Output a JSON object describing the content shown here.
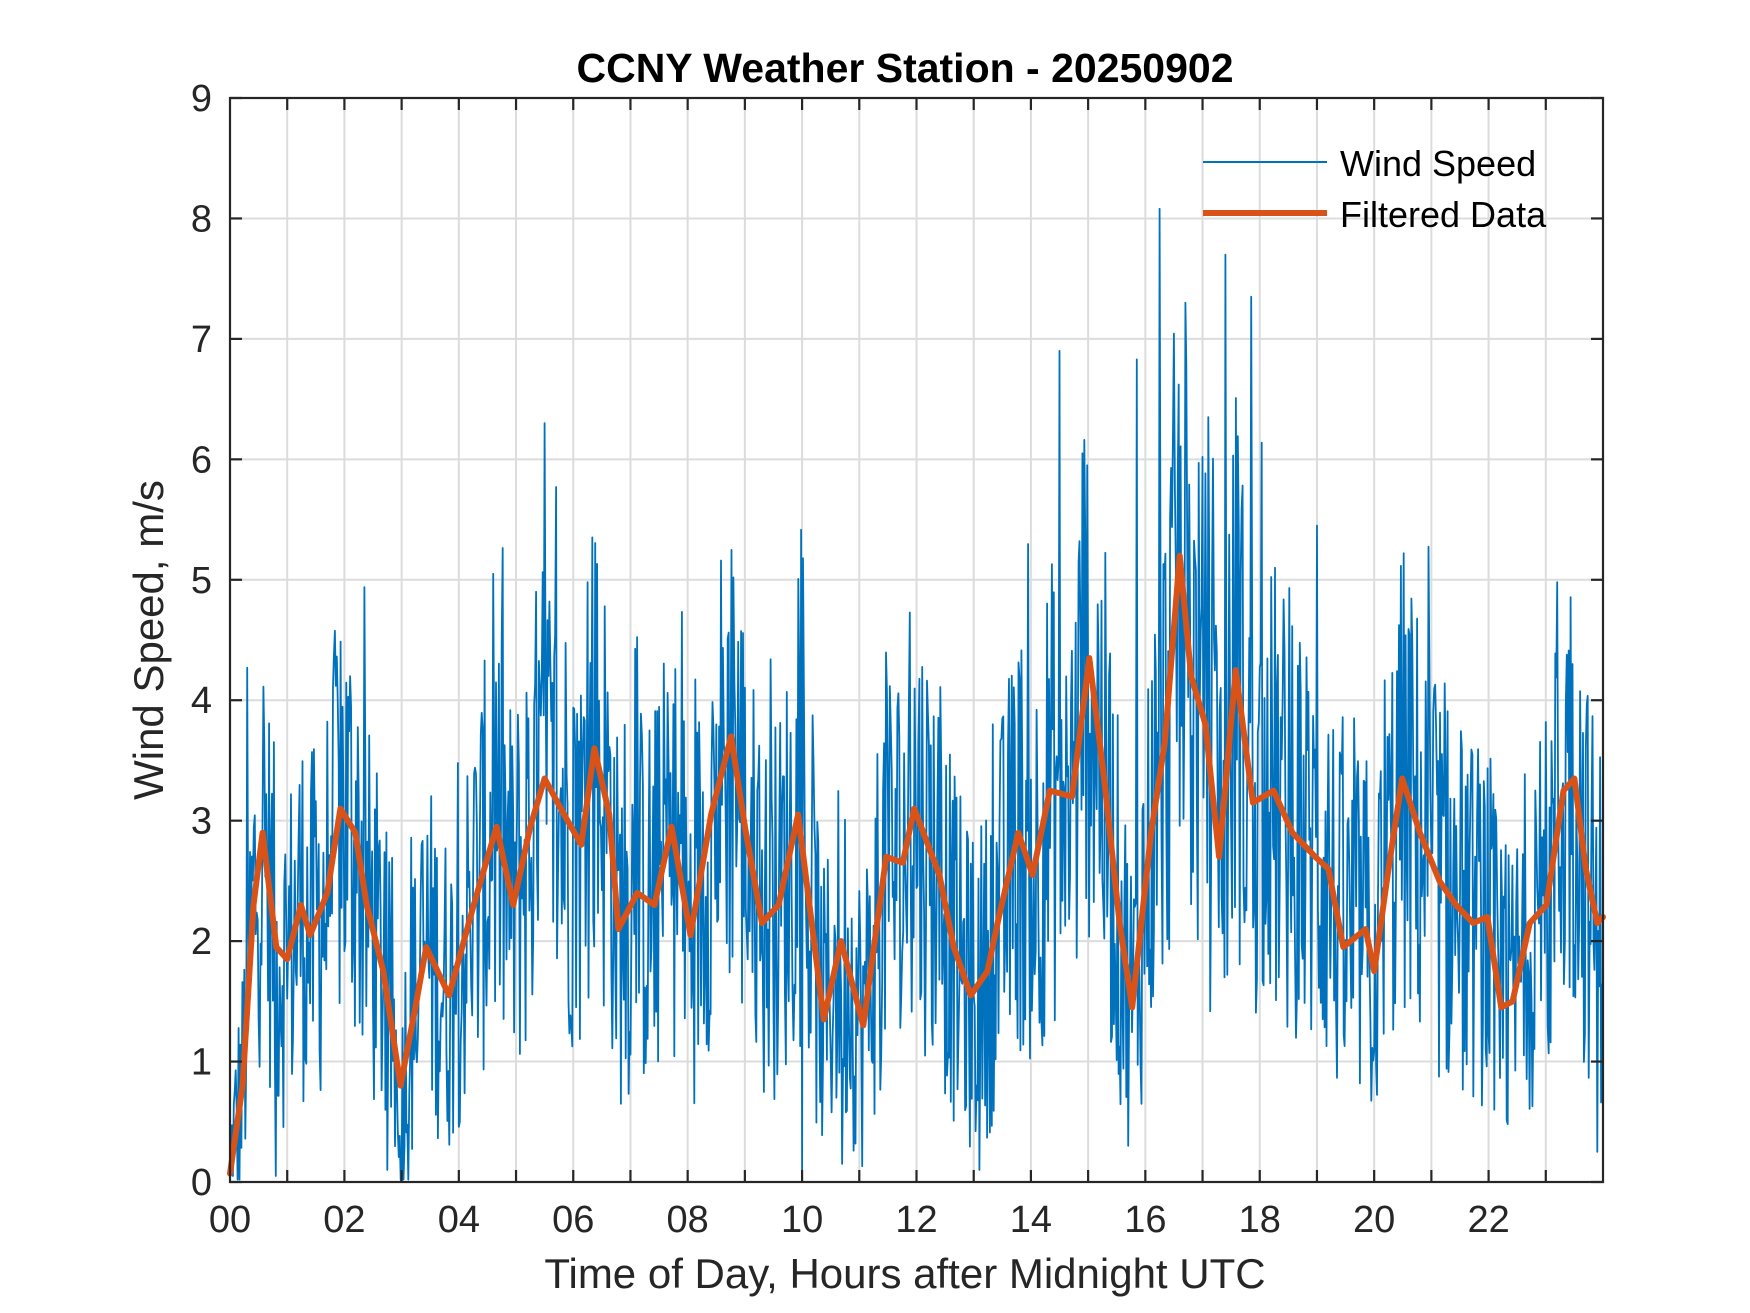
{
  "chart_data": {
    "type": "line",
    "title": "CCNY Weather Station - 20250902",
    "xlabel": "Time of Day, Hours after Midnight UTC",
    "ylabel": "Wind Speed, m/s",
    "xlim": [
      0,
      24
    ],
    "ylim": [
      0,
      9
    ],
    "x_ticks": [
      0,
      2,
      4,
      6,
      8,
      10,
      12,
      14,
      16,
      18,
      20,
      22
    ],
    "x_tick_labels": [
      "00",
      "02",
      "04",
      "06",
      "08",
      "10",
      "12",
      "14",
      "16",
      "18",
      "20",
      "22"
    ],
    "x_minor_grid_step": 1,
    "y_ticks": [
      0,
      1,
      2,
      3,
      4,
      5,
      6,
      7,
      8,
      9
    ],
    "y_tick_labels": [
      "0",
      "1",
      "2",
      "3",
      "4",
      "5",
      "6",
      "7",
      "8",
      "9"
    ],
    "grid": true,
    "legend_position": "top-right",
    "series": [
      {
        "name": "Wind Speed",
        "color": "#0072BD",
        "style": "thin",
        "description": "Raw 1-minute-ish samples, highly variable around the filtered curve",
        "notable_peaks": [
          {
            "x": 0.3,
            "y": 4.27
          },
          {
            "x": 1.85,
            "y": 4.12
          },
          {
            "x": 4.6,
            "y": 5.05
          },
          {
            "x": 5.7,
            "y": 5.77
          },
          {
            "x": 6.25,
            "y": 4.98
          },
          {
            "x": 8.8,
            "y": 5.02
          },
          {
            "x": 14.5,
            "y": 6.9
          },
          {
            "x": 14.9,
            "y": 6.05
          },
          {
            "x": 15.85,
            "y": 6.83
          },
          {
            "x": 16.25,
            "y": 8.08
          },
          {
            "x": 16.7,
            "y": 7.3
          },
          {
            "x": 17.1,
            "y": 6.35
          },
          {
            "x": 17.4,
            "y": 7.7
          },
          {
            "x": 17.85,
            "y": 7.35
          },
          {
            "x": 19.0,
            "y": 5.45
          },
          {
            "x": 23.2,
            "y": 4.98
          }
        ],
        "notable_troughs": [
          {
            "x": 0.05,
            "y": 0.05
          },
          {
            "x": 0.8,
            "y": 0.05
          },
          {
            "x": 2.75,
            "y": 0.1
          },
          {
            "x": 3.0,
            "y": 0.0
          },
          {
            "x": 10.0,
            "y": 0.1
          },
          {
            "x": 10.7,
            "y": 0.15
          },
          {
            "x": 13.1,
            "y": 0.1
          },
          {
            "x": 15.7,
            "y": 0.3
          },
          {
            "x": 22.1,
            "y": 0.6
          },
          {
            "x": 23.9,
            "y": 0.25
          }
        ]
      },
      {
        "name": "Filtered Data",
        "color": "#D95319",
        "style": "thick",
        "x": [
          0.0,
          0.22,
          0.41,
          0.57,
          0.81,
          1.0,
          1.24,
          1.4,
          1.7,
          1.93,
          2.19,
          2.39,
          2.68,
          2.98,
          3.24,
          3.43,
          3.83,
          4.26,
          4.66,
          4.95,
          5.25,
          5.5,
          5.84,
          6.14,
          6.37,
          6.63,
          6.79,
          7.12,
          7.42,
          7.72,
          8.05,
          8.41,
          8.76,
          9.0,
          9.3,
          9.59,
          9.93,
          10.38,
          10.68,
          11.07,
          11.47,
          11.76,
          11.96,
          12.2,
          12.4,
          12.65,
          12.95,
          13.24,
          13.44,
          13.78,
          14.03,
          14.33,
          14.72,
          15.02,
          15.28,
          15.55,
          15.77,
          16.1,
          16.34,
          16.6,
          16.8,
          17.05,
          17.29,
          17.58,
          17.88,
          18.24,
          18.57,
          18.97,
          19.2,
          19.46,
          19.85,
          20.0,
          20.25,
          20.49,
          20.8,
          21.14,
          21.43,
          21.73,
          21.98,
          22.22,
          22.42,
          22.72,
          23.01,
          23.31,
          23.5,
          23.7,
          23.9,
          24.0
        ],
        "y": [
          0.07,
          0.8,
          2.3,
          2.9,
          1.95,
          1.85,
          2.3,
          2.05,
          2.4,
          3.1,
          2.9,
          2.3,
          1.75,
          0.8,
          1.45,
          1.95,
          1.55,
          2.3,
          2.95,
          2.3,
          2.95,
          3.35,
          3.05,
          2.8,
          3.6,
          3.05,
          2.1,
          2.4,
          2.3,
          2.95,
          2.05,
          3.05,
          3.7,
          2.95,
          2.15,
          2.3,
          3.05,
          1.35,
          2.0,
          1.3,
          2.7,
          2.65,
          3.1,
          2.8,
          2.55,
          1.95,
          1.55,
          1.75,
          2.2,
          2.9,
          2.55,
          3.25,
          3.2,
          4.35,
          3.35,
          2.15,
          1.45,
          2.9,
          3.65,
          5.2,
          4.2,
          3.8,
          2.7,
          4.25,
          3.15,
          3.25,
          2.9,
          2.7,
          2.6,
          1.95,
          2.1,
          1.75,
          2.6,
          3.35,
          2.9,
          2.5,
          2.3,
          2.15,
          2.2,
          1.45,
          1.5,
          2.15,
          2.3,
          3.25,
          3.35,
          2.6,
          2.15,
          2.2
        ]
      }
    ]
  },
  "legend": {
    "items": [
      {
        "label": "Wind Speed",
        "color": "#0072BD"
      },
      {
        "label": "Filtered Data",
        "color": "#D95319"
      }
    ]
  }
}
